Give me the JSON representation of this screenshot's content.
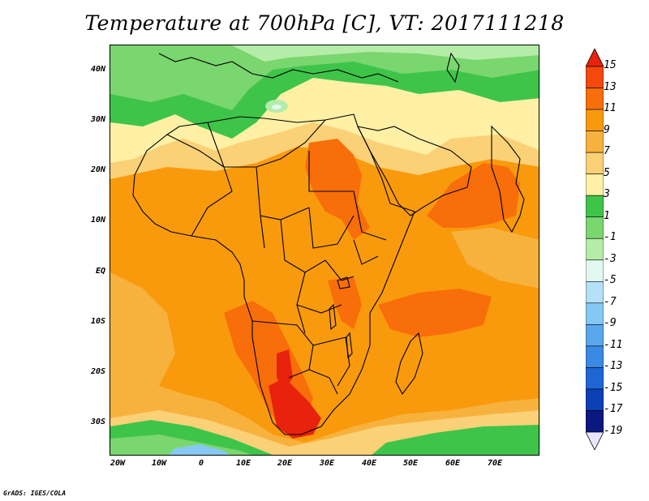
{
  "title": "Temperature at 700hPa [C], VT: 2017111218",
  "credit": "GrADS: IGES/COLA",
  "map": {
    "lon_range": [
      -25,
      80
    ],
    "lat_range": [
      -36,
      45
    ],
    "lat_ticks": [
      "40N",
      "30N",
      "20N",
      "10N",
      "EQ",
      "10S",
      "20S",
      "30S"
    ],
    "lon_ticks": [
      "20W",
      "10W",
      "0",
      "10E",
      "20E",
      "30E",
      "40E",
      "50E",
      "60E",
      "70E"
    ]
  },
  "colorbar": {
    "labels": [
      "15",
      "13",
      "11",
      "9",
      "7",
      "5",
      "3",
      "1",
      "-1",
      "-3",
      "-5",
      "-7",
      "-9",
      "-11",
      "-13",
      "-15",
      "-17",
      "-19"
    ],
    "colors": [
      "#e8220c",
      "#f4480c",
      "#f86e0a",
      "#f99a0c",
      "#f7b23e",
      "#fbd178",
      "#fff0a6",
      "#3fc44a",
      "#7ad66e",
      "#b4eca8",
      "#e2f8f0",
      "#b4e0f8",
      "#86c8f4",
      "#5aa8ec",
      "#3a8ae4",
      "#1e66d4",
      "#0c40b4",
      "#0a1880",
      "#e8e6ff"
    ]
  }
}
